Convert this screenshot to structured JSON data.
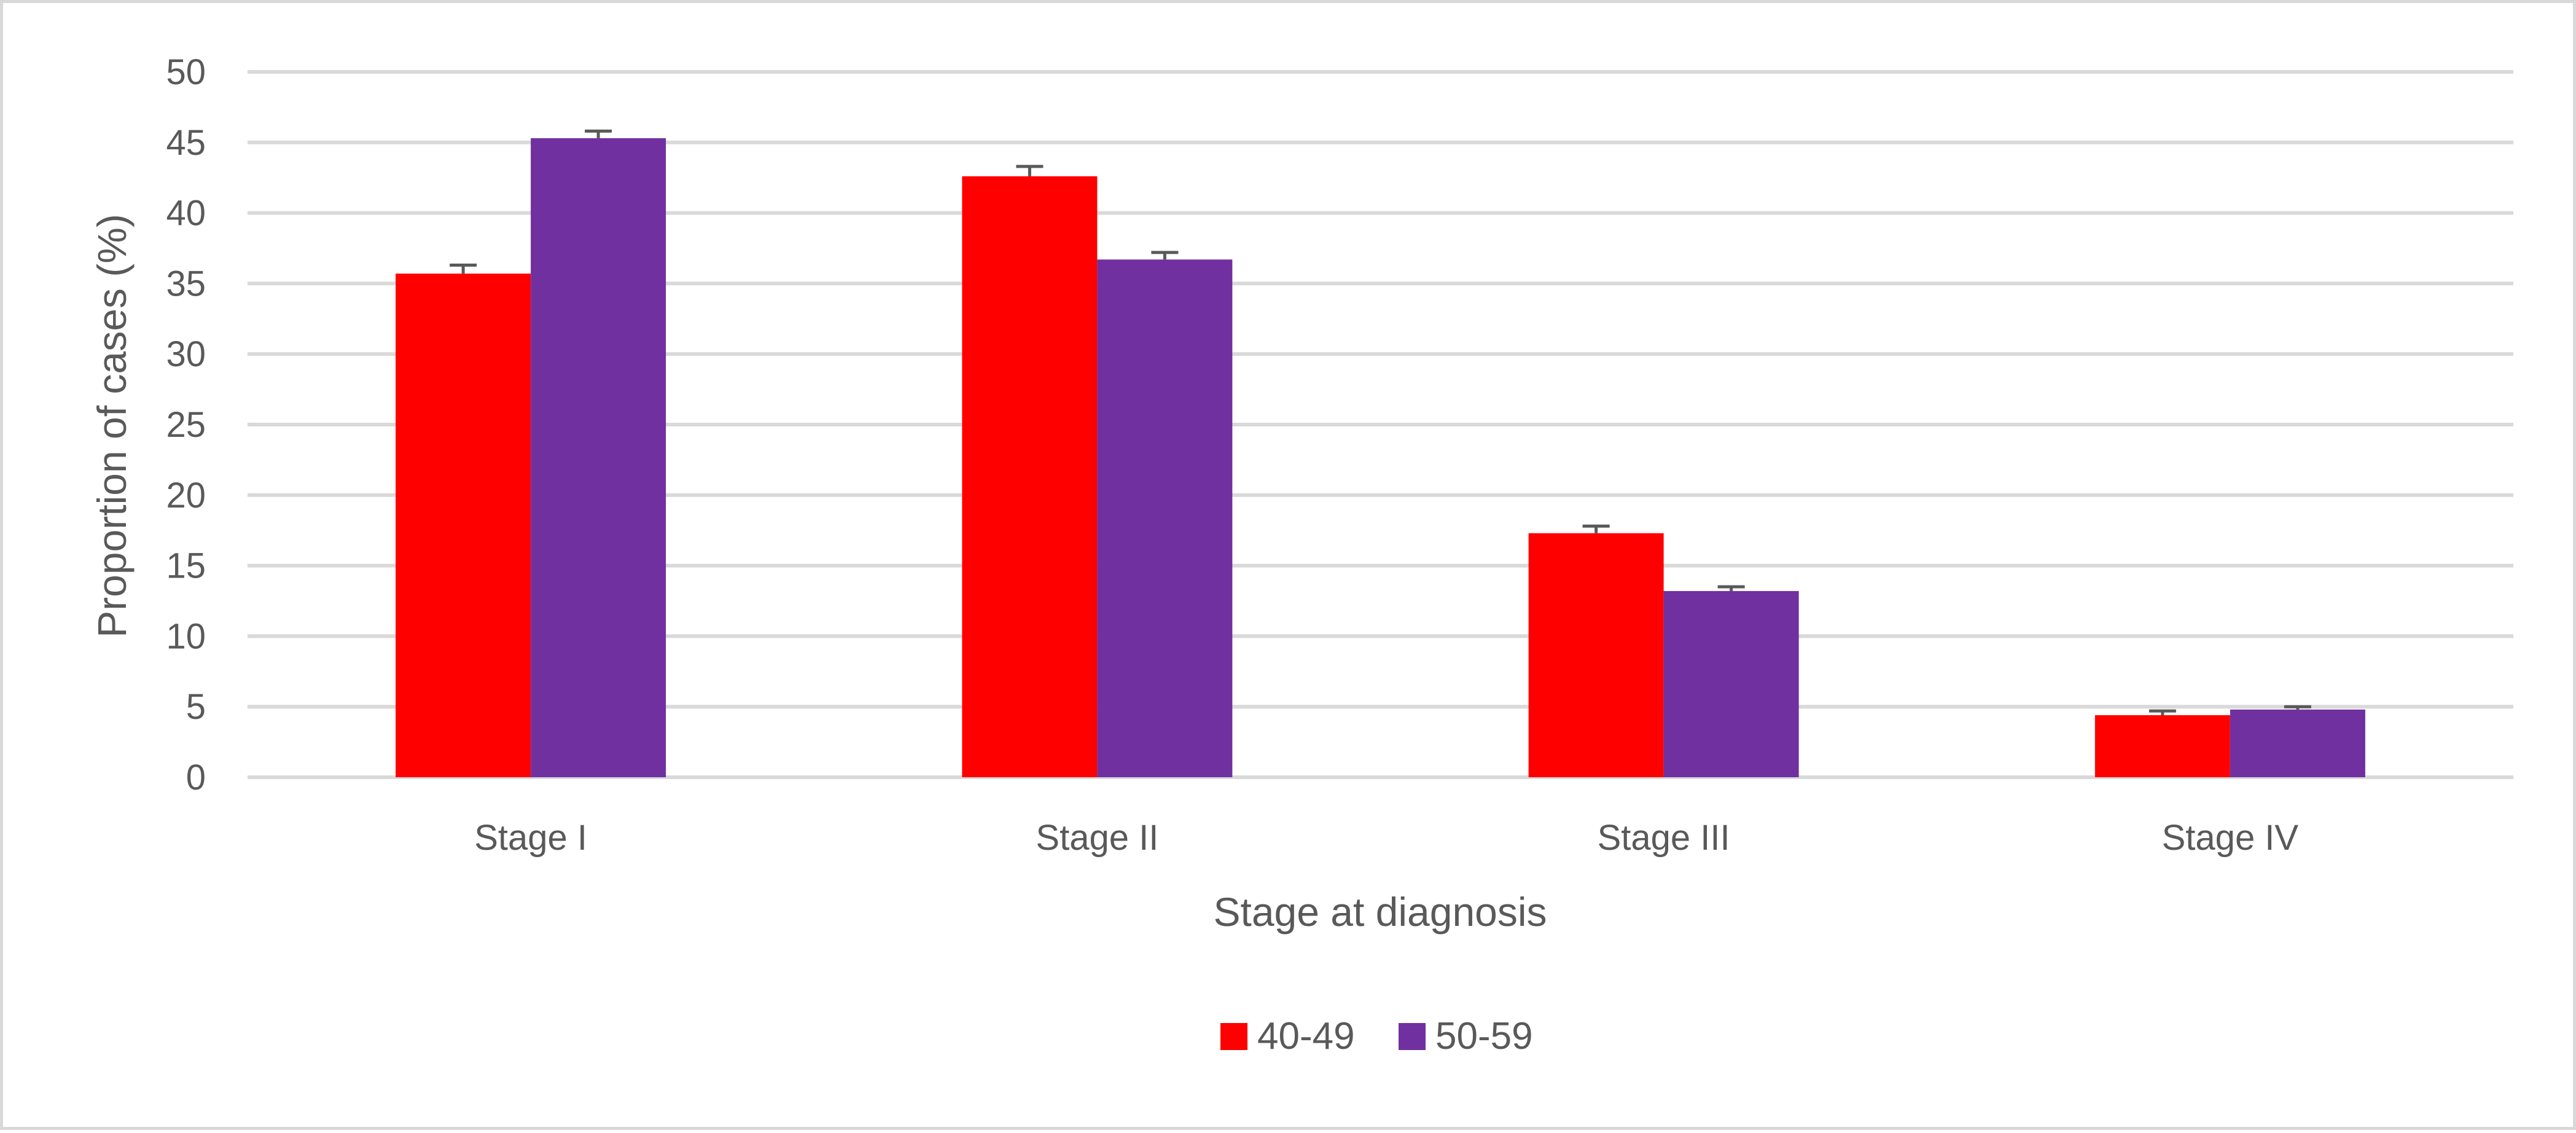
{
  "chart_data": {
    "type": "bar",
    "categories": [
      "Stage I",
      "Stage II",
      "Stage III",
      "Stage IV"
    ],
    "series": [
      {
        "name": "40-49",
        "color": "#ff0000",
        "values": [
          35.7,
          42.6,
          17.3,
          4.4
        ],
        "error": [
          0.6,
          0.7,
          0.5,
          0.3
        ]
      },
      {
        "name": "50-59",
        "color": "#7030a0",
        "values": [
          45.3,
          36.7,
          13.2,
          4.8
        ],
        "error": [
          0.5,
          0.5,
          0.3,
          0.2
        ]
      }
    ],
    "title": "",
    "xlabel": "Stage at diagnosis",
    "ylabel": "Proportion of cases (%)",
    "ylim": [
      0,
      50
    ],
    "yticks": [
      0,
      5,
      10,
      15,
      20,
      25,
      30,
      35,
      40,
      45,
      50
    ],
    "grid": true,
    "legend_position": "bottom",
    "colors": {
      "gridline": "#d9d9d9",
      "text": "#595959",
      "error_bar": "#595959",
      "frame": "#d9d9d9"
    }
  }
}
